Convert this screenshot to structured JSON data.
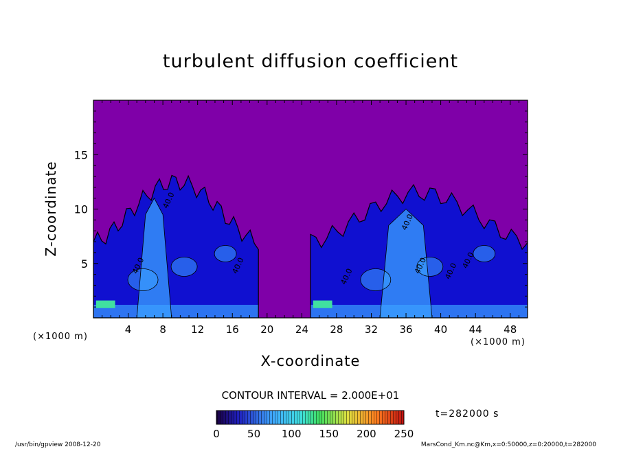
{
  "chart_data": {
    "type": "heatmap",
    "title": "turbulent diffusion coefficient",
    "xlabel": "X-coordinate",
    "ylabel": "Z-coordinate",
    "x_unit": "(×1000 m)",
    "y_unit": "(×1000 m)",
    "xlim": [
      0,
      50
    ],
    "ylim": [
      0,
      20
    ],
    "x_ticks": [
      4,
      8,
      12,
      16,
      20,
      24,
      28,
      32,
      36,
      40,
      44,
      48
    ],
    "y_ticks": [
      5,
      10,
      15
    ],
    "colorbar": {
      "min": 0,
      "max": 250,
      "ticks": [
        0,
        50,
        100,
        150,
        200,
        250
      ]
    },
    "contour_interval": "CONTOUR INTERVAL = 2.000E+01",
    "contour_labels": [
      "40.0",
      "40.0",
      "40.0",
      "40.0",
      "40.0",
      "40.0",
      "40.0",
      "40.0"
    ],
    "plumes": [
      {
        "x_range": [
          0,
          19
        ],
        "top": 12.5,
        "core_x": [
          6,
          8
        ]
      },
      {
        "x_range": [
          25,
          50
        ],
        "top": 11.5,
        "core_x": [
          34,
          38
        ]
      }
    ],
    "time": "t=282000 s",
    "colors": {
      "background": "#7f00a8",
      "low": "#1010d0",
      "mid": "#3aa0ff",
      "high": "#40e0a0"
    }
  },
  "footer": {
    "left": "/usr/bin/gpview   2008-12-20",
    "right": "MarsCond_Km.nc@Km,x=0:50000,z=0:20000,t=282000"
  }
}
